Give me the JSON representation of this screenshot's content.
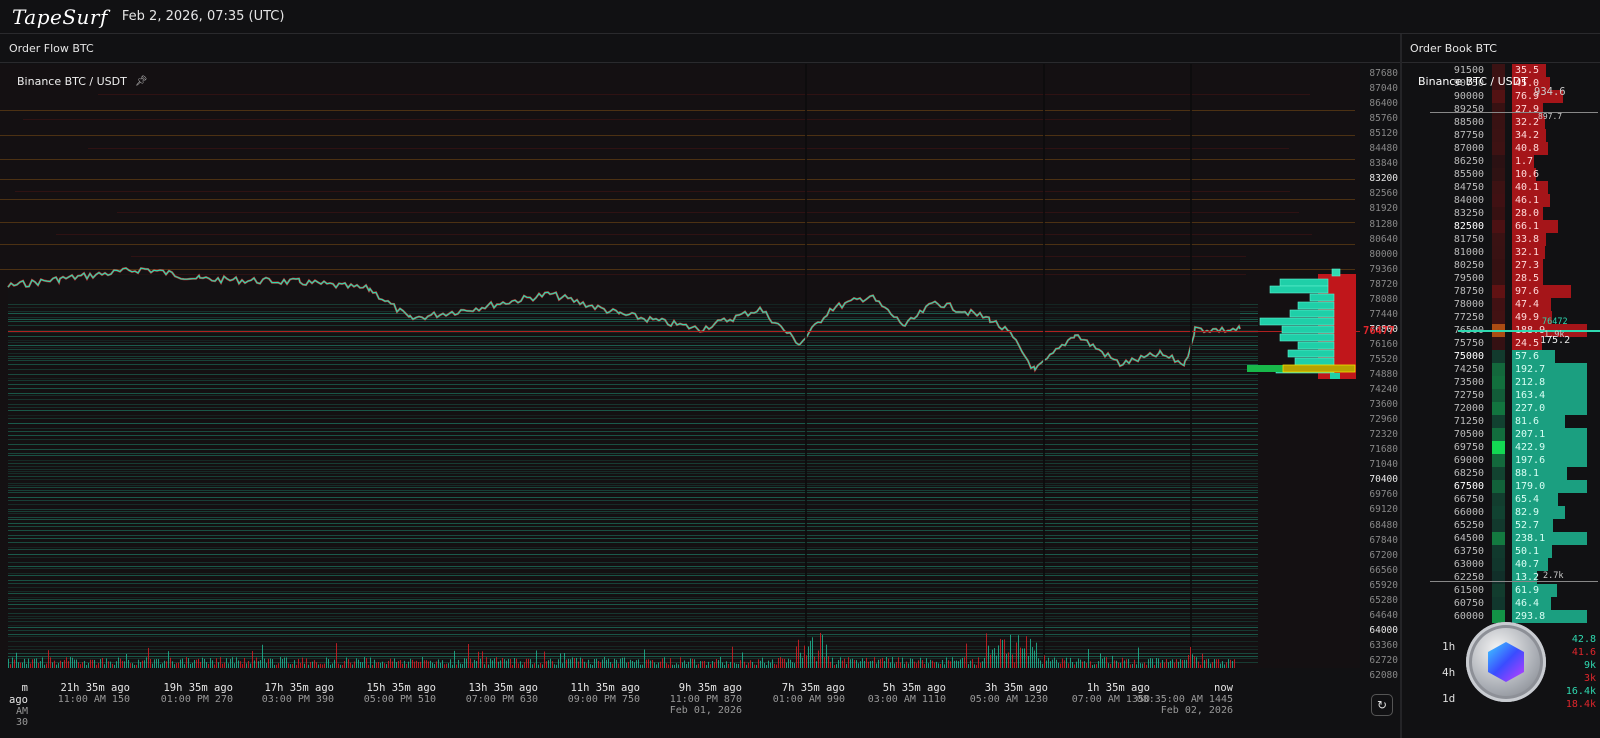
{
  "app": {
    "logo": "TapeSurf",
    "datetime": "Feb 2, 2026, 07:35 (UTC)"
  },
  "order_flow": {
    "title": "Order Flow BTC",
    "pair": "Binance BTC / USDT",
    "pin_icon": "pin-icon",
    "current_price": "76477",
    "y_axis": [
      "87680",
      "87040",
      "86400",
      "85760",
      "85120",
      "84480",
      "83840",
      "83200",
      "82560",
      "81920",
      "81280",
      "80640",
      "80000",
      "79360",
      "78720",
      "78080",
      "77440",
      "76800",
      "76160",
      "75520",
      "74880",
      "74240",
      "73600",
      "72960",
      "72320",
      "71680",
      "71040",
      "70400",
      "69760",
      "69120",
      "68480",
      "67840",
      "67200",
      "66560",
      "65920",
      "65280",
      "64640",
      "64000",
      "63360",
      "62720",
      "62080"
    ],
    "y_axis_highlight": [
      "83200",
      "76800",
      "70400",
      "64000"
    ],
    "x_axis": [
      {
        "ago": "m ago",
        "time": "AM 30",
        "date": ""
      },
      {
        "ago": "21h 35m ago",
        "time": "11:00 AM 150",
        "date": ""
      },
      {
        "ago": "19h 35m ago",
        "time": "01:00 PM 270",
        "date": ""
      },
      {
        "ago": "17h 35m ago",
        "time": "03:00 PM 390",
        "date": ""
      },
      {
        "ago": "15h 35m ago",
        "time": "05:00 PM 510",
        "date": ""
      },
      {
        "ago": "13h 35m ago",
        "time": "07:00 PM 630",
        "date": ""
      },
      {
        "ago": "11h 35m ago",
        "time": "09:00 PM 750",
        "date": ""
      },
      {
        "ago": "9h 35m ago",
        "time": "11:00 PM 870",
        "date": "Feb 01, 2026"
      },
      {
        "ago": "7h 35m ago",
        "time": "01:00 AM 990",
        "date": ""
      },
      {
        "ago": "5h 35m ago",
        "time": "03:00 AM 1110",
        "date": ""
      },
      {
        "ago": "3h 35m ago",
        "time": "05:00 AM 1230",
        "date": ""
      },
      {
        "ago": "1h 35m ago",
        "time": "07:00 AM 1350",
        "date": ""
      },
      {
        "ago": "now",
        "time": "08:35:00 AM 1445",
        "date": "Feb 02, 2026"
      }
    ],
    "refresh_icon": "refresh-icon"
  },
  "order_book": {
    "title": "Order Book BTC",
    "pair": "Binance BTC / USDT",
    "ask_total": "934.6",
    "ask_cum_marker": "897.7",
    "mid_price": "76472",
    "mid_delta": "1.9k",
    "mid_side_qty": "175.2",
    "bid_cum_marker": "2.7k",
    "rows": [
      {
        "price": "91500",
        "qty": "35.5",
        "side": "ask"
      },
      {
        "price": "90750",
        "qty": "45.0",
        "side": "ask"
      },
      {
        "price": "90000",
        "qty": "76.9",
        "side": "ask"
      },
      {
        "price": "89250",
        "qty": "27.9",
        "side": "ask"
      },
      {
        "price": "88500",
        "qty": "32.2",
        "side": "ask"
      },
      {
        "price": "87750",
        "qty": "34.2",
        "side": "ask"
      },
      {
        "price": "87000",
        "qty": "40.8",
        "side": "ask"
      },
      {
        "price": "86250",
        "qty": "1.7",
        "side": "ask"
      },
      {
        "price": "85500",
        "qty": "10.6",
        "side": "ask"
      },
      {
        "price": "84750",
        "qty": "40.1",
        "side": "ask"
      },
      {
        "price": "84000",
        "qty": "46.1",
        "side": "ask"
      },
      {
        "price": "83250",
        "qty": "28.0",
        "side": "ask"
      },
      {
        "price": "82500",
        "qty": "66.1",
        "side": "ask"
      },
      {
        "price": "81750",
        "qty": "33.8",
        "side": "ask"
      },
      {
        "price": "81000",
        "qty": "32.1",
        "side": "ask"
      },
      {
        "price": "80250",
        "qty": "27.3",
        "side": "ask"
      },
      {
        "price": "79500",
        "qty": "28.5",
        "side": "ask"
      },
      {
        "price": "78750",
        "qty": "97.6",
        "side": "ask"
      },
      {
        "price": "78000",
        "qty": "47.4",
        "side": "ask"
      },
      {
        "price": "77250",
        "qty": "49.9",
        "side": "ask"
      },
      {
        "price": "76500",
        "qty": "188.9",
        "side": "ask"
      },
      {
        "price": "75750",
        "qty": "24.5",
        "side": "ask"
      },
      {
        "price": "75000",
        "qty": "57.6",
        "side": "bid"
      },
      {
        "price": "74250",
        "qty": "192.7",
        "side": "bid"
      },
      {
        "price": "73500",
        "qty": "212.8",
        "side": "bid"
      },
      {
        "price": "72750",
        "qty": "163.4",
        "side": "bid"
      },
      {
        "price": "72000",
        "qty": "227.0",
        "side": "bid"
      },
      {
        "price": "71250",
        "qty": "81.6",
        "side": "bid"
      },
      {
        "price": "70500",
        "qty": "207.1",
        "side": "bid"
      },
      {
        "price": "69750",
        "qty": "422.9",
        "side": "bid"
      },
      {
        "price": "69000",
        "qty": "197.6",
        "side": "bid"
      },
      {
        "price": "68250",
        "qty": "88.1",
        "side": "bid"
      },
      {
        "price": "67500",
        "qty": "179.0",
        "side": "bid"
      },
      {
        "price": "66750",
        "qty": "65.4",
        "side": "bid"
      },
      {
        "price": "66000",
        "qty": "82.9",
        "side": "bid"
      },
      {
        "price": "65250",
        "qty": "52.7",
        "side": "bid"
      },
      {
        "price": "64500",
        "qty": "238.1",
        "side": "bid"
      },
      {
        "price": "63750",
        "qty": "50.1",
        "side": "bid"
      },
      {
        "price": "63000",
        "qty": "40.7",
        "side": "bid"
      },
      {
        "price": "62250",
        "qty": "13.2",
        "side": "bid"
      },
      {
        "price": "61500",
        "qty": "61.9",
        "side": "bid"
      },
      {
        "price": "60750",
        "qty": "46.4",
        "side": "bid"
      },
      {
        "price": "60000",
        "qty": "293.8",
        "side": "bid"
      }
    ],
    "highlight_prices": [
      "82500",
      "75000",
      "67500"
    ],
    "cvd": [
      {
        "label": "1h",
        "buy": "42.8",
        "sell": "41.6"
      },
      {
        "label": "4h",
        "buy": "9k",
        "sell": "3k"
      },
      {
        "label": "1d",
        "buy": "16.4k",
        "sell": "18.4k"
      }
    ]
  },
  "colors": {
    "bg": "#111113",
    "ask": "#d0161c",
    "bid": "#1fcfa8",
    "accent_yellow": "#c8b400"
  }
}
